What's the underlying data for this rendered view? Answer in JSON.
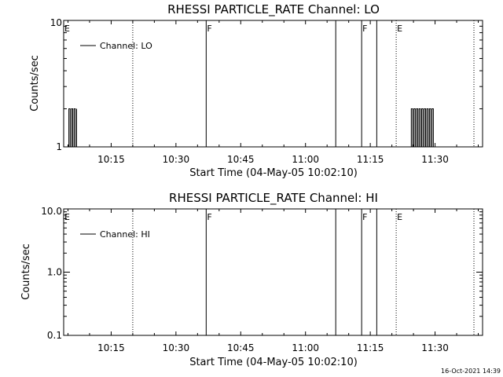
{
  "footer_stamp": "16-Oct-2021 14:39",
  "chart_data": [
    {
      "type": "line",
      "title": "RHESSI PARTICLE_RATE Channel: LO",
      "xlabel": "Start Time (04-May-05 10:02:10)",
      "ylabel": "Counts/sec",
      "yscale": "log",
      "ylim": [
        1,
        10
      ],
      "xlim_minutes": [
        "10:04",
        "11:41"
      ],
      "x_tick_labels": [
        "10:15",
        "10:30",
        "10:45",
        "11:00",
        "11:15",
        "11:30"
      ],
      "x_tick_minutes": [
        15,
        30,
        45,
        60,
        75,
        90
      ],
      "y_tick_labels": [
        "1",
        "10"
      ],
      "y_tick_values": [
        1,
        10
      ],
      "legend": "Channel: LO",
      "legend_position": "top-left",
      "flags": [
        {
          "label": "E",
          "time": "10:04",
          "style": "none"
        },
        {
          "label": "",
          "time": "10:20",
          "style": "dotted"
        },
        {
          "label": "F",
          "time": "10:37",
          "style": "solid"
        },
        {
          "label": "",
          "time": "11:07",
          "style": "solid"
        },
        {
          "label": "F",
          "time": "11:13",
          "style": "solid"
        },
        {
          "label": "",
          "time": "11:16.5",
          "style": "solid"
        },
        {
          "label": "E",
          "time": "11:21",
          "style": "dotted"
        },
        {
          "label": "",
          "time": "11:39",
          "style": "dotted"
        }
      ],
      "series": [
        {
          "name": "Channel: LO",
          "segments": [
            {
              "start_min": 5.2,
              "end_min": 7.1,
              "toggle_min": 0.3,
              "low": 1,
              "high": 2
            },
            {
              "start_min": 84.5,
              "end_min": 89.8,
              "toggle_min": 0.3,
              "low": 1,
              "high": 2
            }
          ]
        }
      ]
    },
    {
      "type": "line",
      "title": "RHESSI PARTICLE_RATE Channel: HI",
      "xlabel": "Start Time (04-May-05 10:02:10)",
      "ylabel": "Counts/sec",
      "yscale": "log",
      "ylim": [
        0.1,
        10
      ],
      "xlim_minutes": [
        "10:04",
        "11:41"
      ],
      "x_tick_labels": [
        "10:15",
        "10:30",
        "10:45",
        "11:00",
        "11:15",
        "11:30"
      ],
      "x_tick_minutes": [
        15,
        30,
        45,
        60,
        75,
        90
      ],
      "y_tick_labels": [
        "0.1",
        "1.0",
        "10.0"
      ],
      "y_tick_values": [
        0.1,
        1,
        10
      ],
      "legend": "Channel: HI",
      "legend_position": "top-left",
      "flags": [
        {
          "label": "E",
          "time": "10:04",
          "style": "none"
        },
        {
          "label": "",
          "time": "10:20",
          "style": "dotted"
        },
        {
          "label": "F",
          "time": "10:37",
          "style": "solid"
        },
        {
          "label": "",
          "time": "11:07",
          "style": "solid"
        },
        {
          "label": "F",
          "time": "11:13",
          "style": "solid"
        },
        {
          "label": "",
          "time": "11:16.5",
          "style": "solid"
        },
        {
          "label": "E",
          "time": "11:21",
          "style": "dotted"
        },
        {
          "label": "",
          "time": "11:39",
          "style": "dotted"
        }
      ],
      "series": [
        {
          "name": "Channel: HI",
          "segments": []
        }
      ]
    }
  ]
}
